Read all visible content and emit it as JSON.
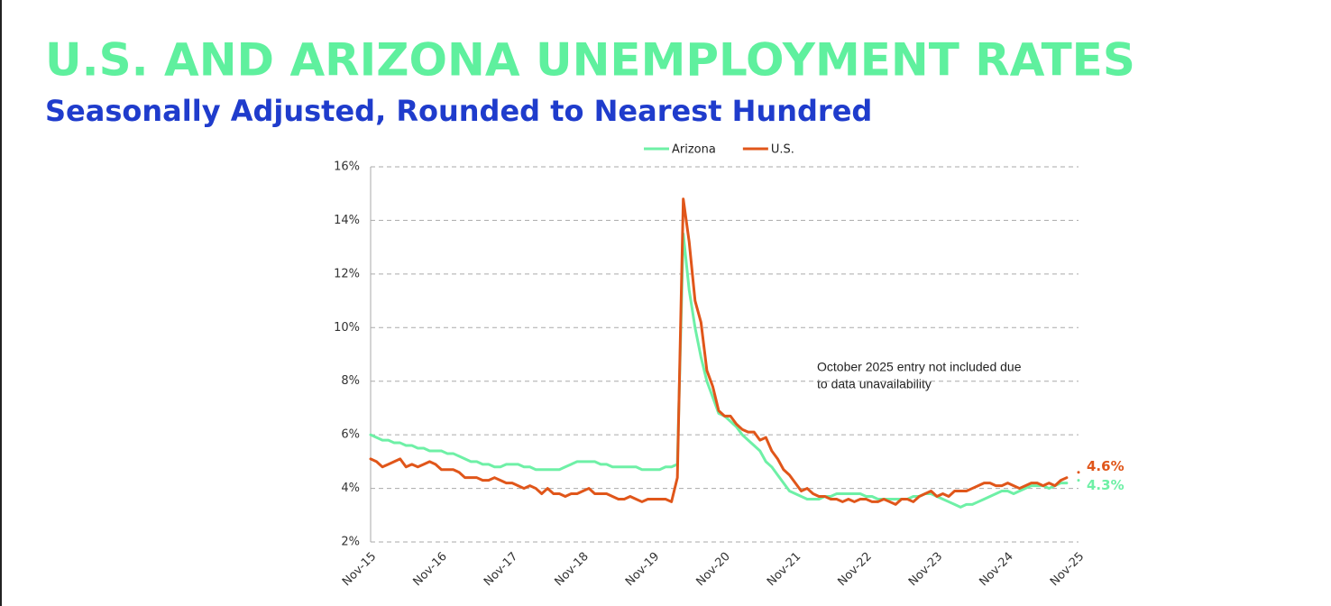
{
  "chart_data": {
    "type": "line",
    "title": "U.S. AND ARIZONA UNEMPLOYMENT RATES",
    "subtitle": "Seasonally Adjusted, Rounded to Nearest Hundred",
    "annotation": [
      "October 2025 entry not included due",
      "to data unavailability"
    ],
    "legend": "top",
    "grid": true,
    "ylim": [
      2,
      16
    ],
    "yticks": [
      {
        "value": 2,
        "label": "2%"
      },
      {
        "value": 4,
        "label": "4%"
      },
      {
        "value": 6,
        "label": "6%"
      },
      {
        "value": 8,
        "label": "8%"
      },
      {
        "value": 10,
        "label": "10%"
      },
      {
        "value": 12,
        "label": "12%"
      },
      {
        "value": 14,
        "label": "14%"
      },
      {
        "value": 16,
        "label": "16%"
      }
    ],
    "categories": [
      "Nov-15",
      null,
      null,
      null,
      null,
      null,
      null,
      null,
      null,
      null,
      null,
      null,
      "Nov-16",
      null,
      null,
      null,
      null,
      null,
      null,
      null,
      null,
      null,
      null,
      null,
      "Nov-17",
      null,
      null,
      null,
      null,
      null,
      null,
      null,
      null,
      null,
      null,
      null,
      "Nov-18",
      null,
      null,
      null,
      null,
      null,
      null,
      null,
      null,
      null,
      null,
      null,
      "Nov-19",
      null,
      null,
      null,
      null,
      null,
      null,
      null,
      null,
      null,
      null,
      null,
      "Nov-20",
      null,
      null,
      null,
      null,
      null,
      null,
      null,
      null,
      null,
      null,
      null,
      "Nov-21",
      null,
      null,
      null,
      null,
      null,
      null,
      null,
      null,
      null,
      null,
      null,
      "Nov-22",
      null,
      null,
      null,
      null,
      null,
      null,
      null,
      null,
      null,
      null,
      null,
      "Nov-23",
      null,
      null,
      null,
      null,
      null,
      null,
      null,
      null,
      null,
      null,
      null,
      "Nov-24",
      null,
      null,
      null,
      null,
      null,
      null,
      null,
      null,
      null,
      null,
      null,
      "Nov-25"
    ],
    "series": [
      {
        "name": "Arizona",
        "color": "#6ef0a6",
        "values": [
          6.0,
          5.9,
          5.8,
          5.8,
          5.7,
          5.7,
          5.6,
          5.6,
          5.5,
          5.5,
          5.4,
          5.4,
          5.4,
          5.3,
          5.3,
          5.2,
          5.1,
          5.0,
          5.0,
          4.9,
          4.9,
          4.8,
          4.8,
          4.9,
          4.9,
          4.9,
          4.8,
          4.8,
          4.7,
          4.7,
          4.7,
          4.7,
          4.7,
          4.8,
          4.9,
          5.0,
          5.0,
          5.0,
          5.0,
          4.9,
          4.9,
          4.8,
          4.8,
          4.8,
          4.8,
          4.8,
          4.7,
          4.7,
          4.7,
          4.7,
          4.8,
          4.8,
          4.9,
          13.5,
          11.4,
          10.0,
          8.9,
          8.0,
          7.4,
          6.8,
          6.7,
          6.5,
          6.3,
          6.0,
          5.8,
          5.6,
          5.4,
          5.0,
          4.8,
          4.5,
          4.2,
          3.9,
          3.8,
          3.7,
          3.6,
          3.6,
          3.6,
          3.7,
          3.7,
          3.8,
          3.8,
          3.8,
          3.8,
          3.8,
          3.7,
          3.7,
          3.6,
          3.6,
          3.6,
          3.6,
          3.6,
          3.6,
          3.7,
          3.7,
          3.8,
          3.8,
          3.7,
          3.6,
          3.5,
          3.4,
          3.3,
          3.4,
          3.4,
          3.5,
          3.6,
          3.7,
          3.8,
          3.9,
          3.9,
          3.8,
          3.9,
          4.0,
          4.1,
          4.1,
          4.1,
          4.0,
          4.1,
          4.2,
          4.2,
          null,
          4.3
        ],
        "value_labels": [
          null,
          null,
          null,
          null,
          null,
          null,
          null,
          null,
          null,
          null,
          null,
          null,
          null,
          null,
          null,
          null,
          null,
          null,
          null,
          null,
          null,
          null,
          null,
          null,
          null,
          null,
          null,
          null,
          null,
          null,
          null,
          null,
          null,
          null,
          null,
          null,
          null,
          null,
          null,
          null,
          null,
          null,
          null,
          null,
          null,
          null,
          null,
          null,
          null,
          null,
          null,
          null,
          null,
          null,
          null,
          null,
          null,
          null,
          null,
          null,
          null,
          null,
          null,
          null,
          null,
          null,
          null,
          null,
          null,
          null,
          null,
          null,
          null,
          null,
          null,
          null,
          null,
          null,
          null,
          null,
          null,
          null,
          null,
          null,
          null,
          null,
          null,
          null,
          null,
          null,
          null,
          null,
          null,
          null,
          null,
          null,
          null,
          null,
          null,
          null,
          null,
          null,
          null,
          null,
          null,
          null,
          null,
          null,
          null,
          null,
          null,
          null,
          null,
          null,
          null,
          null,
          null,
          null,
          null,
          null,
          "4.3%"
        ]
      },
      {
        "name": "U.S.",
        "color": "#e0561a",
        "values": [
          5.1,
          5.0,
          4.8,
          4.9,
          5.0,
          5.1,
          4.8,
          4.9,
          4.8,
          4.9,
          5.0,
          4.9,
          4.7,
          4.7,
          4.7,
          4.6,
          4.4,
          4.4,
          4.4,
          4.3,
          4.3,
          4.4,
          4.3,
          4.2,
          4.2,
          4.1,
          4.0,
          4.1,
          4.0,
          3.8,
          4.0,
          3.8,
          3.8,
          3.7,
          3.8,
          3.8,
          3.9,
          4.0,
          3.8,
          3.8,
          3.8,
          3.7,
          3.6,
          3.6,
          3.7,
          3.6,
          3.5,
          3.6,
          3.6,
          3.6,
          3.6,
          3.5,
          4.4,
          14.8,
          13.2,
          11.0,
          10.2,
          8.4,
          7.8,
          6.9,
          6.7,
          6.7,
          6.4,
          6.2,
          6.1,
          6.1,
          5.8,
          5.9,
          5.4,
          5.1,
          4.7,
          4.5,
          4.2,
          3.9,
          4.0,
          3.8,
          3.7,
          3.7,
          3.6,
          3.6,
          3.5,
          3.6,
          3.5,
          3.6,
          3.6,
          3.5,
          3.5,
          3.6,
          3.5,
          3.4,
          3.6,
          3.6,
          3.5,
          3.7,
          3.8,
          3.9,
          3.7,
          3.8,
          3.7,
          3.9,
          3.9,
          3.9,
          4.0,
          4.1,
          4.2,
          4.2,
          4.1,
          4.1,
          4.2,
          4.1,
          4.0,
          4.1,
          4.2,
          4.2,
          4.1,
          4.2,
          4.1,
          4.3,
          4.4,
          null,
          4.6
        ],
        "value_labels": [
          null,
          null,
          null,
          null,
          null,
          null,
          null,
          null,
          null,
          null,
          null,
          null,
          null,
          null,
          null,
          null,
          null,
          null,
          null,
          null,
          null,
          null,
          null,
          null,
          null,
          null,
          null,
          null,
          null,
          null,
          null,
          null,
          null,
          null,
          null,
          null,
          null,
          null,
          null,
          null,
          null,
          null,
          null,
          null,
          null,
          null,
          null,
          null,
          null,
          null,
          null,
          null,
          null,
          null,
          null,
          null,
          null,
          null,
          null,
          null,
          null,
          null,
          null,
          null,
          null,
          null,
          null,
          null,
          null,
          null,
          null,
          null,
          null,
          null,
          null,
          null,
          null,
          null,
          null,
          null,
          null,
          null,
          null,
          null,
          null,
          null,
          null,
          null,
          null,
          null,
          null,
          null,
          null,
          null,
          null,
          null,
          null,
          null,
          null,
          null,
          null,
          null,
          null,
          null,
          null,
          null,
          null,
          null,
          null,
          null,
          null,
          null,
          null,
          null,
          null,
          null,
          null,
          null,
          null,
          null,
          "4.6%"
        ]
      }
    ]
  }
}
